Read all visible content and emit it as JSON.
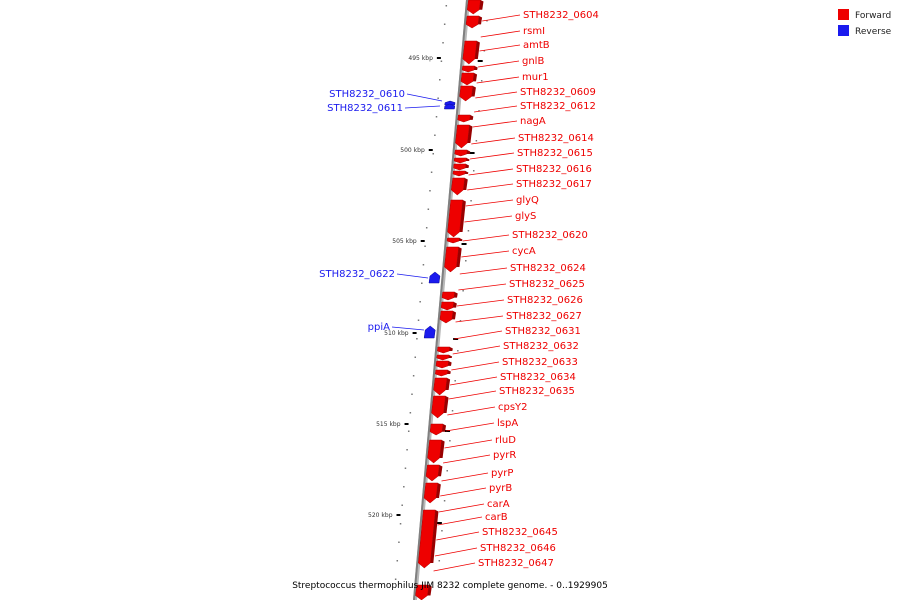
{
  "colors": {
    "forward": "#ee0000",
    "reverse": "#1a1aee",
    "backbone": "#808080"
  },
  "legend": [
    {
      "label": "Forward",
      "color": "#ee0000"
    },
    {
      "label": "Reverse",
      "color": "#1a1aee"
    }
  ],
  "caption": "Streptococcus thermophilus JIM 8232 complete genome. - 0..1929905",
  "ticks": [
    {
      "label": "495 kbp"
    },
    {
      "label": "500 kbp"
    },
    {
      "label": "505 kbp"
    },
    {
      "label": "510 kbp"
    },
    {
      "label": "515 kbp"
    },
    {
      "label": "520 kbp"
    }
  ],
  "forward_genes": [
    "STH8232_0604",
    "rsmI",
    "amtB",
    "gnlB",
    "mur1",
    "STH8232_0609",
    "STH8232_0612",
    "nagA",
    "STH8232_0614",
    "STH8232_0615",
    "STH8232_0616",
    "STH8232_0617",
    "glyQ",
    "glyS",
    "STH8232_0620",
    "cycA",
    "STH8232_0624",
    "STH8232_0625",
    "STH8232_0626",
    "STH8232_0627",
    "STH8232_0631",
    "STH8232_0632",
    "STH8232_0633",
    "STH8232_0634",
    "STH8232_0635",
    "cpsY2",
    "lspA",
    "rluD",
    "pyrR",
    "pyrP",
    "pyrB",
    "carA",
    "carB",
    "STH8232_0645",
    "STH8232_0646",
    "STH8232_0647"
  ],
  "reverse_genes": [
    "STH8232_0610",
    "STH8232_0611",
    "STH8232_0622",
    "ppiA"
  ]
}
